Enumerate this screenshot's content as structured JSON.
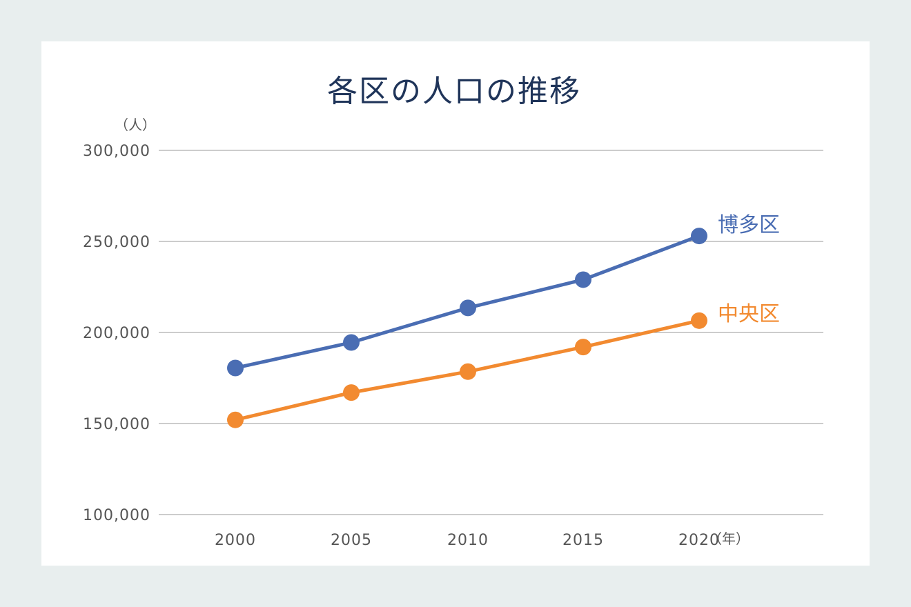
{
  "chart_data": {
    "type": "line",
    "title": "各区の人口の推移",
    "ylabel": "（人）",
    "xlabel": "（年）",
    "x": [
      "2000",
      "2005",
      "2010",
      "2015",
      "2020"
    ],
    "ylim": [
      100000,
      300000
    ],
    "yticks": [
      100000,
      150000,
      200000,
      250000,
      300000
    ],
    "ytick_labels": [
      "100,000",
      "150,000",
      "200,000",
      "250,000",
      "300,000"
    ],
    "grid": true,
    "legend": "inline labels at line ends",
    "series": [
      {
        "name": "博多区",
        "color": "#4a6db3",
        "values": [
          180500,
          194500,
          213500,
          229000,
          253000
        ]
      },
      {
        "name": "中央区",
        "color": "#f28a30",
        "values": [
          152000,
          167000,
          178500,
          192000,
          206500
        ]
      }
    ]
  },
  "page": {
    "background_color": "#e8eeee",
    "panel_color": "#ffffff",
    "title_color": "#1f3459"
  }
}
